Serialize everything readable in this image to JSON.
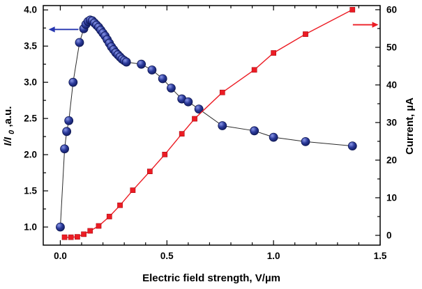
{
  "figure": {
    "background": "#ffffff"
  },
  "colors": {
    "frame": "#000000",
    "background": "#ffffff",
    "blue_ball_highlight": "#8a97e8",
    "blue_ball_core": "#2b3a9a",
    "blue_ball_edge": "#0b1450",
    "blue_arrow": "#2636b0",
    "red_series": "#ec1c24"
  },
  "chart_data": {
    "type": "line",
    "title": "",
    "xlabel": "Electric field strength, V/µm",
    "ylabel_left_main": "I/I",
    "ylabel_left_sub": "0",
    "ylabel_left_rest": ",a.u.",
    "ylabel_right": "Current, µA",
    "xlim": [
      -0.08,
      1.5
    ],
    "ylim_left": [
      0.75,
      4.06
    ],
    "ylim_right": [
      -2.6,
      61.1
    ],
    "x_ticks": [
      0.0,
      0.5,
      1.0,
      1.5
    ],
    "x_tick_labels": [
      "0.0",
      "0.5",
      "1.0",
      "1.5"
    ],
    "x_minor_step": 0.1,
    "y_ticks_left": [
      1.0,
      1.5,
      2.0,
      2.5,
      3.0,
      3.5,
      4.0
    ],
    "y_tick_labels_left": [
      "1.0",
      "1.5",
      "2.0",
      "2.5",
      "3.0",
      "3.5",
      "4.0"
    ],
    "y_minor_step_left": 0.25,
    "y_ticks_right": [
      0,
      10,
      20,
      30,
      40,
      50,
      60
    ],
    "y_tick_labels_right": [
      "0",
      "10",
      "20",
      "30",
      "40",
      "50",
      "60"
    ],
    "y_minor_step_right": 5,
    "grid": false,
    "legend": "none",
    "series": [
      {
        "name": "intensity-ratio",
        "label": "I/I0, a.u.",
        "axis": "left",
        "marker": "circle",
        "marker_color": "#1b2a85",
        "line_color": "#2a2a2a",
        "points": [
          [
            0.0,
            1.0
          ],
          [
            0.02,
            2.08
          ],
          [
            0.03,
            2.32
          ],
          [
            0.04,
            2.47
          ],
          [
            0.06,
            3.0
          ],
          [
            0.09,
            3.55
          ],
          [
            0.11,
            3.74
          ],
          [
            0.12,
            3.8
          ],
          [
            0.13,
            3.84
          ],
          [
            0.14,
            3.86
          ],
          [
            0.15,
            3.85
          ],
          [
            0.16,
            3.82
          ],
          [
            0.17,
            3.79
          ],
          [
            0.18,
            3.76
          ],
          [
            0.19,
            3.72
          ],
          [
            0.2,
            3.68
          ],
          [
            0.21,
            3.64
          ],
          [
            0.22,
            3.59
          ],
          [
            0.23,
            3.54
          ],
          [
            0.24,
            3.49
          ],
          [
            0.25,
            3.45
          ],
          [
            0.26,
            3.41
          ],
          [
            0.27,
            3.38
          ],
          [
            0.28,
            3.35
          ],
          [
            0.29,
            3.32
          ],
          [
            0.3,
            3.3
          ],
          [
            0.31,
            3.28
          ],
          [
            0.38,
            3.25
          ],
          [
            0.43,
            3.17
          ],
          [
            0.48,
            3.05
          ],
          [
            0.52,
            2.92
          ],
          [
            0.57,
            2.77
          ],
          [
            0.6,
            2.73
          ],
          [
            0.65,
            2.63
          ],
          [
            0.76,
            2.4
          ],
          [
            0.91,
            2.33
          ],
          [
            1.0,
            2.24
          ],
          [
            1.15,
            2.18
          ],
          [
            1.37,
            2.12
          ]
        ]
      },
      {
        "name": "current",
        "label": "Current, µA",
        "axis": "right",
        "marker": "square",
        "marker_color": "#ec1c24",
        "line_color": "#ec1c24",
        "points": [
          [
            0.02,
            -0.5
          ],
          [
            0.05,
            -0.5
          ],
          [
            0.08,
            -0.4
          ],
          [
            0.11,
            0.3
          ],
          [
            0.14,
            1.2
          ],
          [
            0.18,
            2.5
          ],
          [
            0.23,
            5.0
          ],
          [
            0.28,
            8.0
          ],
          [
            0.34,
            12.0
          ],
          [
            0.42,
            17.0
          ],
          [
            0.49,
            21.5
          ],
          [
            0.57,
            27.0
          ],
          [
            0.63,
            31.0
          ],
          [
            0.76,
            38.0
          ],
          [
            0.91,
            44.0
          ],
          [
            1.0,
            48.5
          ],
          [
            1.15,
            53.5
          ],
          [
            1.37,
            60.0
          ]
        ]
      }
    ],
    "annotations": [
      {
        "name": "left-axis-arrow",
        "axis": "left",
        "y": 3.73,
        "x_from": 0.085,
        "x_to": -0.055,
        "color": "#2636b0"
      },
      {
        "name": "right-axis-arrow",
        "axis": "right",
        "y": 56.0,
        "x_from": 1.372,
        "x_to": 1.492,
        "color": "#ec1c24"
      }
    ]
  }
}
